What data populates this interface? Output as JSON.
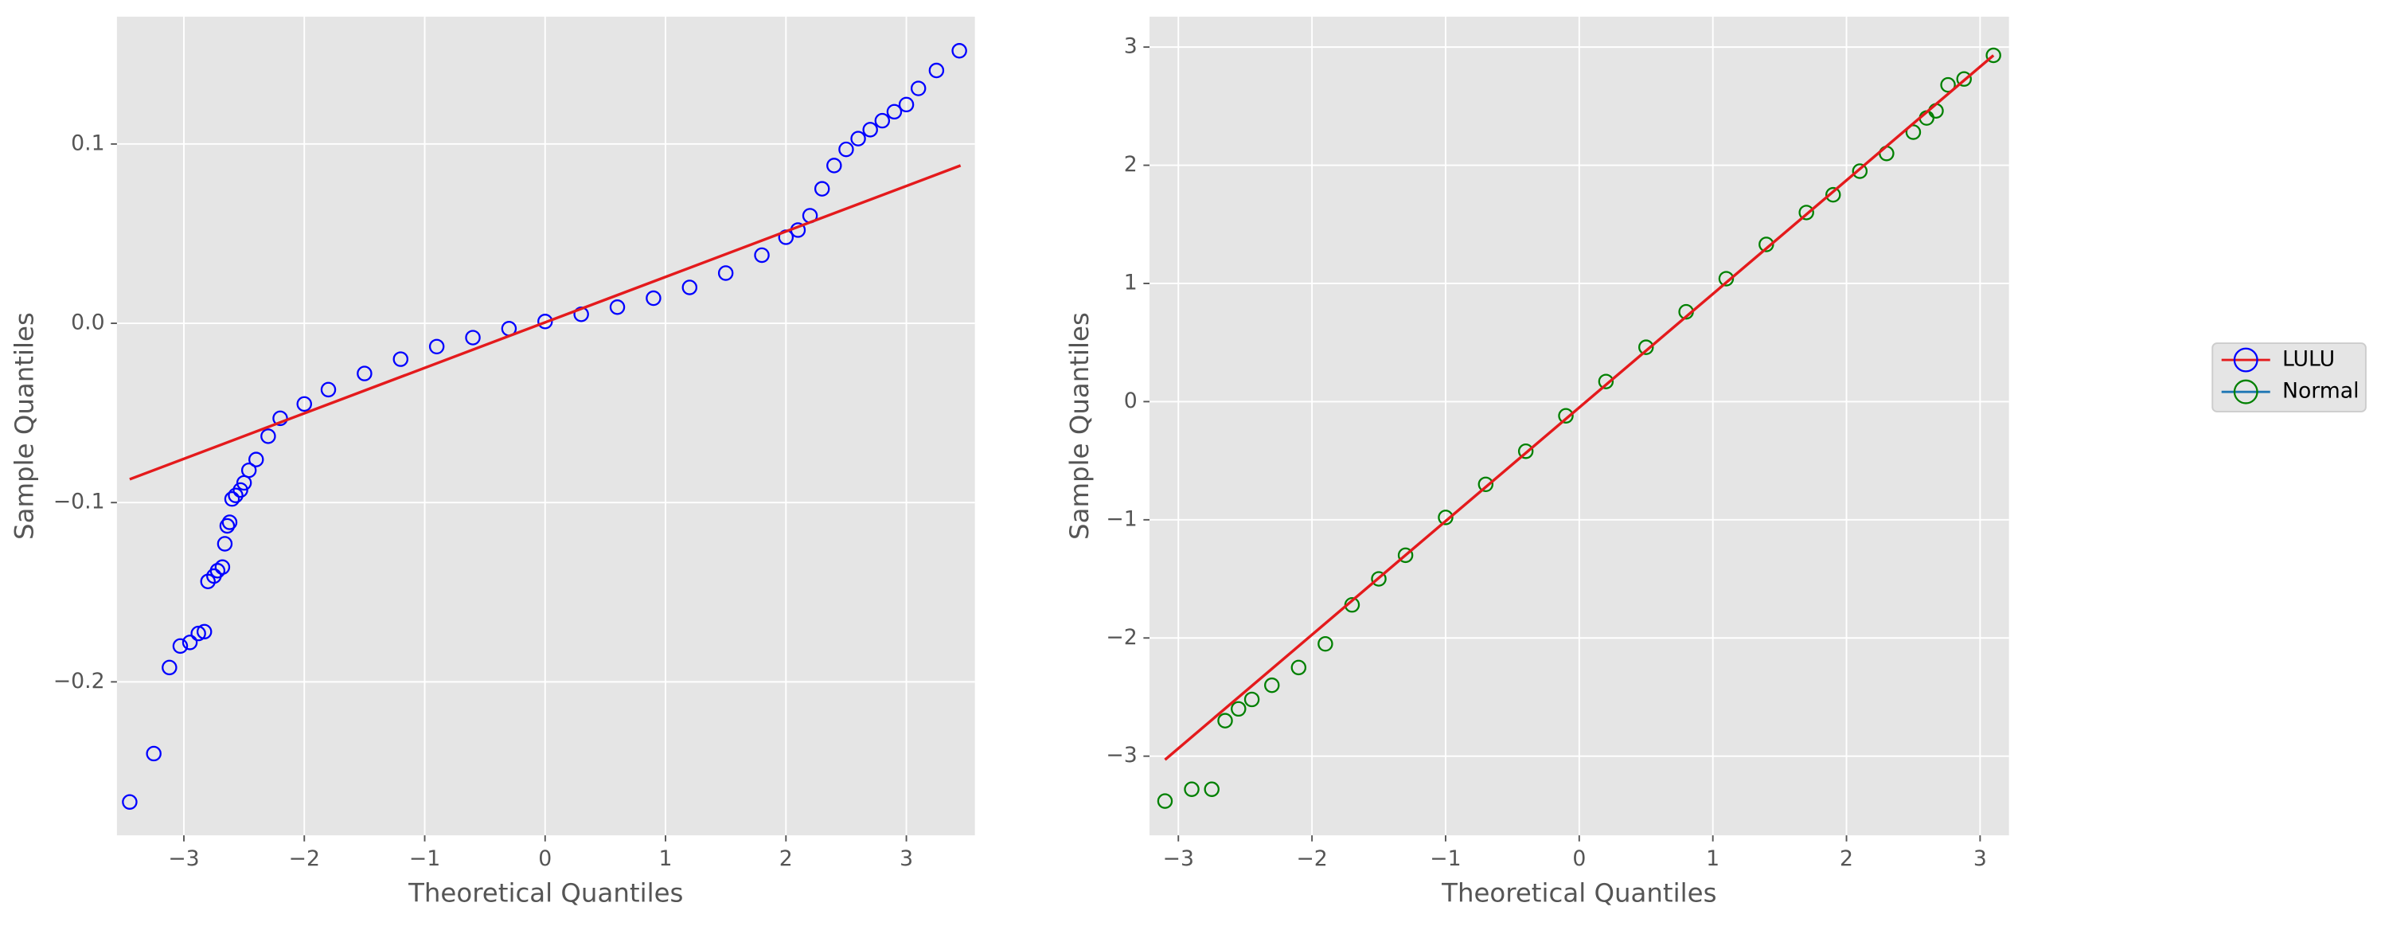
{
  "chart_data": [
    {
      "type": "scatter",
      "xlabel": "Theoretical Quantiles",
      "ylabel": "Sample Quantiles",
      "xlim": [
        -3.556,
        3.569
      ],
      "ylim": [
        -0.2856,
        0.171
      ],
      "xticks": [
        {
          "value": -3,
          "label": "−3"
        },
        {
          "value": -2,
          "label": "−2"
        },
        {
          "value": -1,
          "label": "−1"
        },
        0,
        1,
        2,
        3
      ],
      "yticks": [
        {
          "value": -0.2,
          "label": "−0.2"
        },
        {
          "value": -0.1,
          "label": "−0.1"
        },
        {
          "value": 0,
          "label": "0.0"
        },
        {
          "value": 0.1,
          "label": "0.1"
        }
      ],
      "grid": true,
      "series": [
        {
          "name": "LULU",
          "color": "#0000ff",
          "legend_line_color": "#e41a1c",
          "x": [
            -3.45,
            -3.25,
            -3.12,
            -3.03,
            -2.95,
            -2.88,
            -2.83,
            -2.8,
            -2.75,
            -2.72,
            -2.68,
            -2.66,
            -2.64,
            -2.62,
            -2.6,
            -2.57,
            -2.53,
            -2.5,
            -2.46,
            -2.4,
            -2.3,
            -2.2,
            -2.0,
            -1.8,
            -1.5,
            -1.2,
            -0.9,
            -0.6,
            -0.3,
            0,
            0.3,
            0.6,
            0.9,
            1.2,
            1.5,
            1.8,
            2.0,
            2.1,
            2.2,
            2.3,
            2.4,
            2.5,
            2.6,
            2.7,
            2.8,
            2.9,
            3.0,
            3.1,
            3.25,
            3.44
          ],
          "y": [
            -0.267,
            -0.24,
            -0.192,
            -0.18,
            -0.178,
            -0.173,
            -0.172,
            -0.144,
            -0.141,
            -0.138,
            -0.136,
            -0.123,
            -0.113,
            -0.111,
            -0.098,
            -0.096,
            -0.093,
            -0.089,
            -0.082,
            -0.076,
            -0.063,
            -0.053,
            -0.045,
            -0.037,
            -0.028,
            -0.02,
            -0.013,
            -0.008,
            -0.003,
            0.001,
            0.005,
            0.009,
            0.014,
            0.02,
            0.028,
            0.038,
            0.048,
            0.052,
            0.06,
            0.075,
            0.088,
            0.097,
            0.103,
            0.108,
            0.113,
            0.118,
            0.122,
            0.131,
            0.141,
            0.152
          ]
        }
      ],
      "fit_line": {
        "color": "#e41a1c",
        "x": [
          -3.45,
          3.45
        ],
        "y": [
          -0.087,
          0.088
        ]
      }
    },
    {
      "type": "scatter",
      "xlabel": "Theoretical Quantiles",
      "ylabel": "Sample Quantiles",
      "xlim": [
        -3.216,
        3.216
      ],
      "ylim": [
        -3.67,
        3.257
      ],
      "xticks": [
        {
          "value": -3,
          "label": "−3"
        },
        {
          "value": -2,
          "label": "−2"
        },
        {
          "value": -1,
          "label": "−1"
        },
        0,
        1,
        2,
        3
      ],
      "yticks": [
        {
          "value": -3,
          "label": "−3"
        },
        {
          "value": -2,
          "label": "−2"
        },
        {
          "value": -1,
          "label": "−1"
        },
        0,
        1,
        2,
        3
      ],
      "grid": true,
      "series": [
        {
          "name": "Normal",
          "color": "#008000",
          "legend_line_color": "#1f77b4",
          "x": [
            -3.1,
            -2.9,
            -2.75,
            -2.65,
            -2.55,
            -2.45,
            -2.3,
            -2.1,
            -1.9,
            -1.7,
            -1.5,
            -1.3,
            -1.0,
            -0.7,
            -0.4,
            -0.1,
            0.2,
            0.5,
            0.8,
            1.1,
            1.4,
            1.7,
            1.9,
            2.1,
            2.3,
            2.5,
            2.6,
            2.67,
            2.76,
            2.88,
            3.1
          ],
          "y": [
            -3.38,
            -3.28,
            -3.28,
            -2.7,
            -2.6,
            -2.52,
            -2.4,
            -2.25,
            -2.05,
            -1.72,
            -1.5,
            -1.3,
            -0.98,
            -0.7,
            -0.42,
            -0.12,
            0.17,
            0.46,
            0.76,
            1.04,
            1.33,
            1.6,
            1.75,
            1.95,
            2.1,
            2.28,
            2.4,
            2.46,
            2.68,
            2.73,
            2.93
          ]
        }
      ],
      "fit_line": {
        "color": "#e41a1c",
        "x": [
          -3.1,
          3.1
        ],
        "y": [
          -3.03,
          2.93
        ]
      }
    }
  ]
}
